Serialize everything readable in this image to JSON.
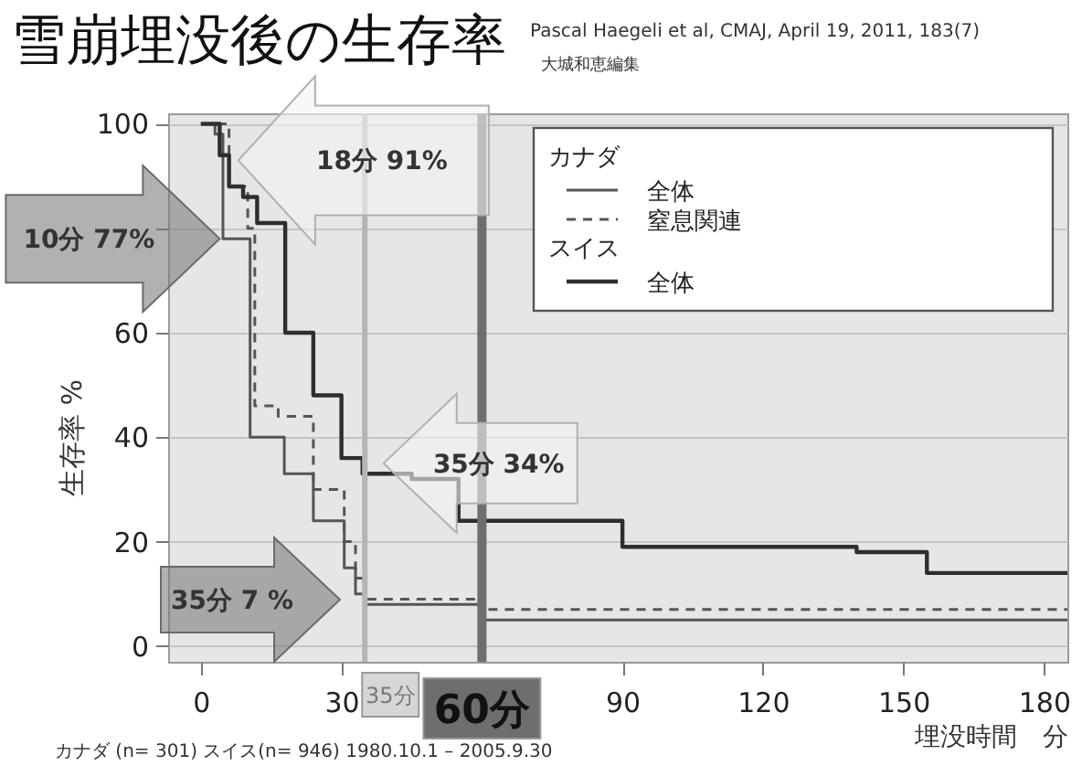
{
  "chart_data": {
    "type": "step",
    "title": "雪崩埋没後の生存率",
    "xlabel": "埋没時間　分",
    "ylabel": "生存率 %",
    "xlim": [
      -7,
      185
    ],
    "xticks": [
      0,
      30,
      90,
      120,
      150,
      180
    ],
    "ylim": [
      -3,
      102
    ],
    "yticks": [
      0,
      20,
      40,
      60,
      {
        "value": 80,
        "label": null
      },
      100
    ],
    "grid": "y",
    "legend": "top right",
    "series": [
      {
        "name": "全体",
        "color": "#555555",
        "line_style": "solid",
        "x": [
          0,
          3,
          4.7,
          10.5,
          17.8,
          24,
          30.6,
          33,
          35,
          60,
          185
        ],
        "values": [
          100,
          98,
          78,
          40,
          33,
          24,
          15,
          10,
          8,
          5,
          5
        ]
      },
      {
        "name": "窒息関連",
        "color": "#555555",
        "line_style": "dashed",
        "x": [
          0,
          6,
          10,
          11.5,
          16.5,
          24,
          30.6,
          33,
          35,
          60,
          185
        ],
        "values": [
          100,
          88,
          80,
          46,
          44,
          30,
          20,
          13,
          9,
          7,
          7
        ]
      },
      {
        "name": "全体",
        "color": "#2e2e2e",
        "line_style": "solid",
        "x": [
          0,
          4,
          6,
          9,
          12,
          18,
          24,
          30,
          34.5,
          45,
          55,
          90,
          140,
          155,
          185
        ],
        "values": [
          100,
          94,
          88,
          86,
          81,
          60,
          48,
          36,
          33,
          32,
          24,
          19,
          18,
          14,
          14
        ]
      }
    ],
    "ref_lines": [
      {
        "axis": "x",
        "value": 35,
        "label": "35分",
        "color": "#b5b5b5"
      },
      {
        "axis": "x",
        "value": 60,
        "label": "60分",
        "color": "#6e6e6e"
      }
    ],
    "annotations": [
      "Pascal Haegeli et al, CMAJ, April 19, 2011, 183(7)",
      "大城和恵編集",
      "カナダ (n= 301) スイス(n= 946) 1980.10.1 – 2005.9.30",
      "カナダ",
      "スイス",
      {
        "text": "18分  91%",
        "x": 8,
        "y": 93
      },
      {
        "text": "10分 77%",
        "x": 4,
        "y": 78
      },
      {
        "text": "35分  34%",
        "x": 39,
        "y": 35
      },
      "35分  7 %"
    ]
  }
}
